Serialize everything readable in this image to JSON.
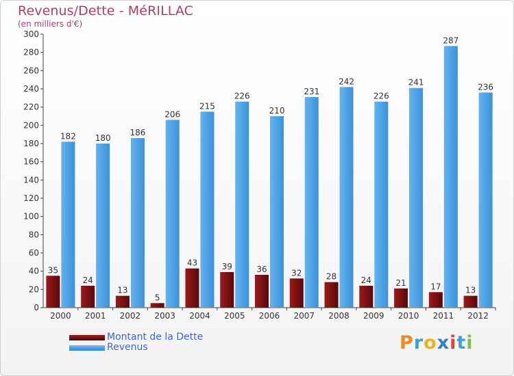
{
  "header": {
    "title": "Revenus/Dette - MéRILLAC",
    "subtitle": "(en milliers d'€)"
  },
  "legend": {
    "debt_label": "Montant de la Dette",
    "revenue_label": "Revenus"
  },
  "logo": {
    "letters": [
      "P",
      "r",
      "o",
      "x",
      "i",
      "t",
      "i"
    ]
  },
  "colors": {
    "title": "#b03d6e",
    "debt": "#7a1010",
    "revenue": "#4aa3e8",
    "axis": "#404040",
    "legend_text": "#3a66e0"
  },
  "chart_data": {
    "type": "bar",
    "title": "Revenus/Dette - MéRILLAC",
    "ylabel": "(en milliers d'€)",
    "xlabel": "",
    "ylim": [
      0,
      300
    ],
    "yticks": [
      0,
      20,
      40,
      60,
      80,
      100,
      120,
      140,
      160,
      180,
      200,
      220,
      240,
      260,
      280,
      300
    ],
    "grid": false,
    "legend": "bottom-left",
    "categories": [
      "2000",
      "2001",
      "2002",
      "2003",
      "2004",
      "2005",
      "2006",
      "2007",
      "2008",
      "2009",
      "2010",
      "2011",
      "2012"
    ],
    "series": [
      {
        "name": "Montant de la Dette",
        "values": [
          35,
          24,
          13,
          5,
          43,
          39,
          36,
          32,
          28,
          24,
          21,
          17,
          13
        ]
      },
      {
        "name": "Revenus",
        "values": [
          182,
          180,
          186,
          206,
          215,
          226,
          210,
          231,
          242,
          226,
          241,
          287,
          236
        ]
      }
    ]
  }
}
